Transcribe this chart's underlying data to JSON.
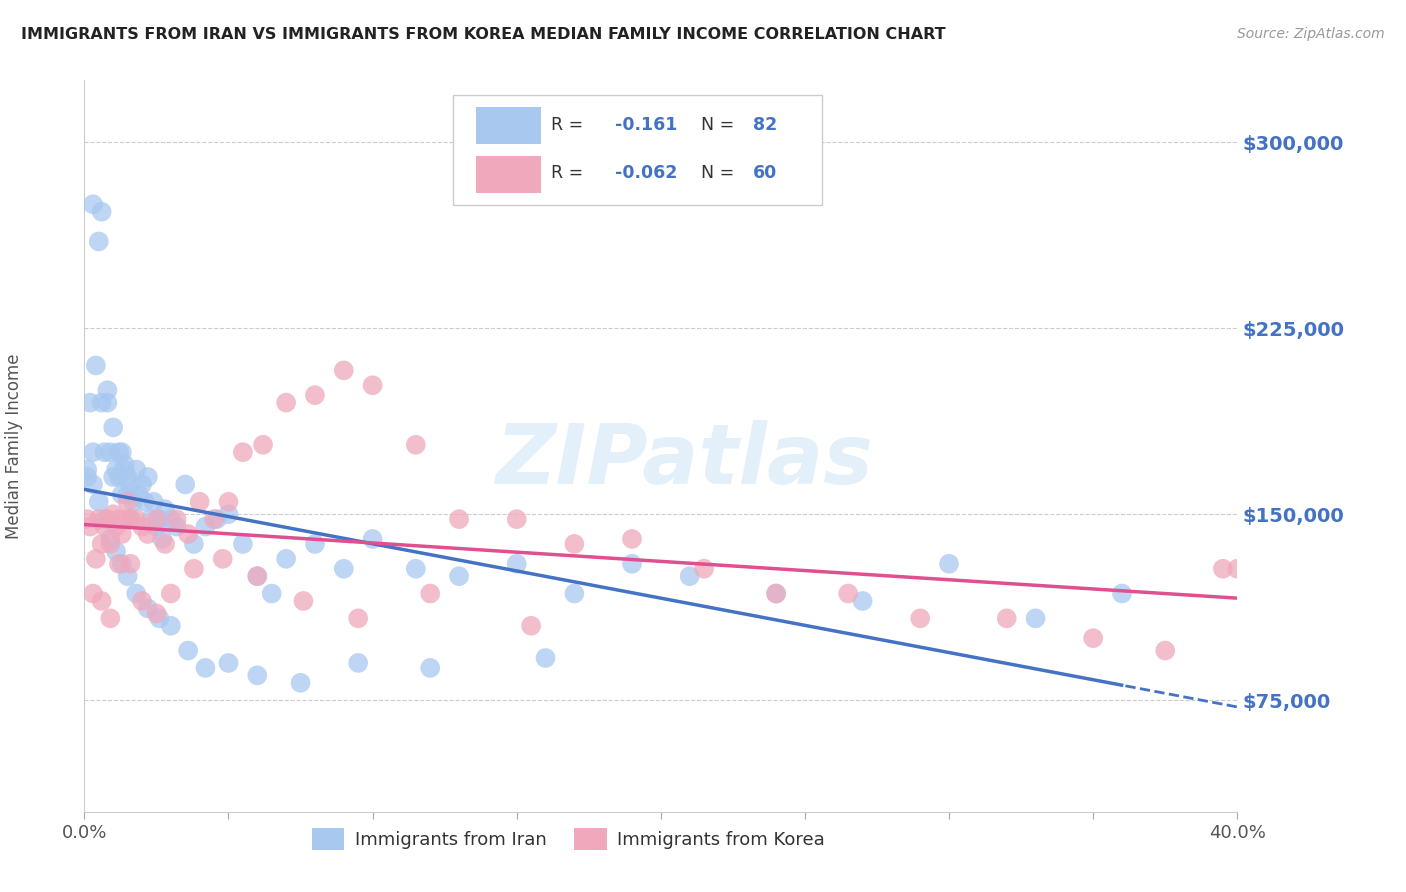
{
  "title": "IMMIGRANTS FROM IRAN VS IMMIGRANTS FROM KOREA MEDIAN FAMILY INCOME CORRELATION CHART",
  "source": "Source: ZipAtlas.com",
  "ylabel": "Median Family Income",
  "xlim": [
    0.0,
    0.4
  ],
  "ylim": [
    30000,
    325000
  ],
  "xticks": [
    0.0,
    0.05,
    0.1,
    0.15,
    0.2,
    0.25,
    0.3,
    0.35,
    0.4
  ],
  "yticks": [
    75000,
    150000,
    225000,
    300000
  ],
  "yticklabels": [
    "$75,000",
    "$150,000",
    "$225,000",
    "$300,000"
  ],
  "iran_color": "#a8c8f0",
  "korea_color": "#f0a8bc",
  "iran_line_color": "#4472c4",
  "korea_line_color": "#e05090",
  "iran_R": -0.161,
  "iran_N": 82,
  "korea_R": -0.062,
  "korea_N": 60,
  "legend_iran_label": "Immigrants from Iran",
  "legend_korea_label": "Immigrants from Korea",
  "watermark": "ZIPatlas",
  "grid_color": "#cccccc",
  "background_color": "#ffffff",
  "title_color": "#222222",
  "axis_label_color": "#555555",
  "ytick_color": "#4472c4",
  "iran_scatter_x": [
    0.001,
    0.002,
    0.003,
    0.004,
    0.005,
    0.006,
    0.007,
    0.008,
    0.008,
    0.009,
    0.01,
    0.01,
    0.011,
    0.012,
    0.012,
    0.013,
    0.013,
    0.014,
    0.014,
    0.015,
    0.015,
    0.016,
    0.016,
    0.017,
    0.018,
    0.019,
    0.02,
    0.021,
    0.022,
    0.023,
    0.024,
    0.025,
    0.026,
    0.027,
    0.028,
    0.03,
    0.032,
    0.035,
    0.038,
    0.042,
    0.046,
    0.05,
    0.055,
    0.06,
    0.065,
    0.07,
    0.08,
    0.09,
    0.1,
    0.115,
    0.13,
    0.15,
    0.17,
    0.19,
    0.21,
    0.24,
    0.27,
    0.3,
    0.33,
    0.36,
    0.001,
    0.003,
    0.005,
    0.007,
    0.009,
    0.011,
    0.013,
    0.015,
    0.018,
    0.022,
    0.026,
    0.03,
    0.036,
    0.042,
    0.05,
    0.06,
    0.075,
    0.095,
    0.12,
    0.16,
    0.003,
    0.006
  ],
  "iran_scatter_y": [
    165000,
    195000,
    175000,
    210000,
    260000,
    195000,
    175000,
    195000,
    200000,
    175000,
    185000,
    165000,
    168000,
    165000,
    175000,
    158000,
    175000,
    170000,
    168000,
    165000,
    158000,
    162000,
    148000,
    155000,
    168000,
    158000,
    162000,
    155000,
    165000,
    148000,
    155000,
    145000,
    148000,
    140000,
    152000,
    148000,
    145000,
    162000,
    138000,
    145000,
    148000,
    150000,
    138000,
    125000,
    118000,
    132000,
    138000,
    128000,
    140000,
    128000,
    125000,
    130000,
    118000,
    130000,
    125000,
    118000,
    115000,
    130000,
    108000,
    118000,
    168000,
    162000,
    155000,
    148000,
    140000,
    135000,
    130000,
    125000,
    118000,
    112000,
    108000,
    105000,
    95000,
    88000,
    90000,
    85000,
    82000,
    90000,
    88000,
    92000,
    275000,
    272000
  ],
  "korea_scatter_x": [
    0.001,
    0.002,
    0.004,
    0.005,
    0.006,
    0.007,
    0.008,
    0.009,
    0.01,
    0.011,
    0.012,
    0.013,
    0.014,
    0.015,
    0.016,
    0.018,
    0.02,
    0.022,
    0.025,
    0.028,
    0.032,
    0.036,
    0.04,
    0.045,
    0.05,
    0.055,
    0.062,
    0.07,
    0.08,
    0.09,
    0.1,
    0.115,
    0.13,
    0.15,
    0.17,
    0.19,
    0.215,
    0.24,
    0.265,
    0.29,
    0.32,
    0.35,
    0.375,
    0.395,
    0.003,
    0.006,
    0.009,
    0.012,
    0.016,
    0.02,
    0.025,
    0.03,
    0.038,
    0.048,
    0.06,
    0.076,
    0.095,
    0.12,
    0.155,
    0.4
  ],
  "korea_scatter_y": [
    148000,
    145000,
    132000,
    148000,
    138000,
    145000,
    148000,
    138000,
    150000,
    145000,
    148000,
    142000,
    148000,
    155000,
    148000,
    148000,
    145000,
    142000,
    148000,
    138000,
    148000,
    142000,
    155000,
    148000,
    155000,
    175000,
    178000,
    195000,
    198000,
    208000,
    202000,
    178000,
    148000,
    148000,
    138000,
    140000,
    128000,
    118000,
    118000,
    108000,
    108000,
    100000,
    95000,
    128000,
    118000,
    115000,
    108000,
    130000,
    130000,
    115000,
    110000,
    118000,
    128000,
    132000,
    125000,
    115000,
    108000,
    118000,
    105000,
    128000
  ]
}
